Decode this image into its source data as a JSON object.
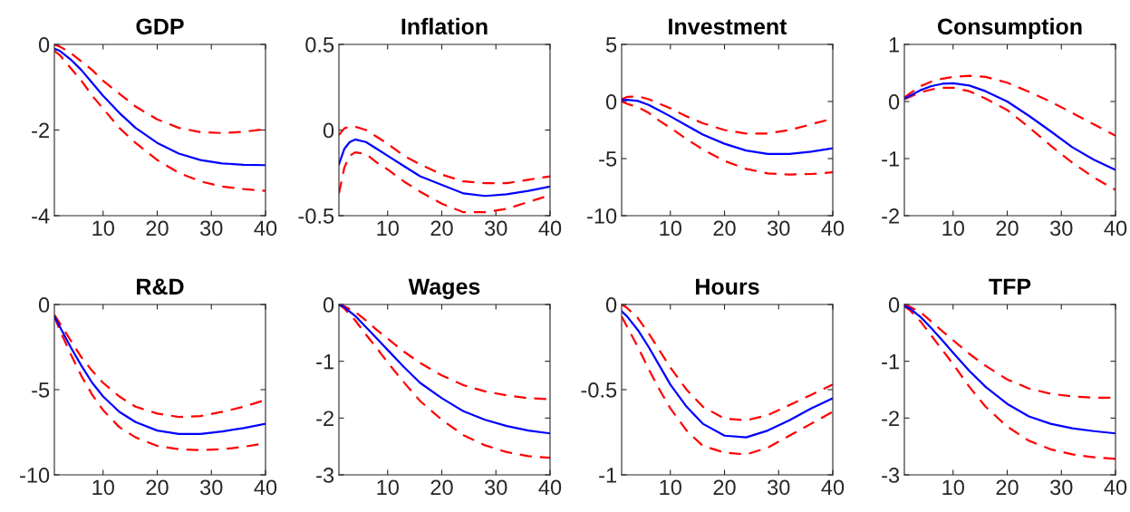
{
  "chart_data": [
    {
      "type": "line",
      "title": "GDP",
      "x": [
        1,
        2,
        4,
        6,
        8,
        10,
        13,
        16,
        20,
        24,
        28,
        32,
        36,
        40
      ],
      "xlim": [
        1,
        40
      ],
      "xticks": [
        10,
        20,
        30,
        40
      ],
      "ylim": [
        -4,
        0
      ],
      "yticks": [
        -4,
        -2,
        0
      ],
      "grid": false,
      "marker": "none",
      "series": [
        {
          "color": "#ff0000",
          "line_style": "dashed",
          "values": [
            0,
            -0.05,
            -0.2,
            -0.4,
            -0.6,
            -0.85,
            -1.15,
            -1.45,
            -1.75,
            -1.95,
            -2.05,
            -2.07,
            -2.04,
            -1.98
          ]
        },
        {
          "color": "#ff0000",
          "line_style": "dashed",
          "values": [
            -0.15,
            -0.25,
            -0.55,
            -0.85,
            -1.2,
            -1.5,
            -1.95,
            -2.3,
            -2.7,
            -3.0,
            -3.2,
            -3.32,
            -3.38,
            -3.42
          ]
        },
        {
          "color": "#0000ff",
          "line_style": "solid",
          "values": [
            -0.1,
            -0.15,
            -0.35,
            -0.6,
            -0.9,
            -1.2,
            -1.6,
            -1.95,
            -2.3,
            -2.55,
            -2.7,
            -2.78,
            -2.81,
            -2.82
          ]
        }
      ]
    },
    {
      "type": "line",
      "title": "Inflation",
      "x": [
        1,
        2,
        3,
        4,
        6,
        8,
        10,
        13,
        16,
        20,
        24,
        28,
        32,
        36,
        40
      ],
      "xlim": [
        1,
        40
      ],
      "xticks": [
        10,
        20,
        30,
        40
      ],
      "ylim": [
        -0.5,
        0.5
      ],
      "yticks": [
        -0.5,
        0,
        0.5
      ],
      "grid": false,
      "marker": "none",
      "series": [
        {
          "color": "#ff0000",
          "line_style": "dashed",
          "values": [
            -0.03,
            0.01,
            0.02,
            0.02,
            0.0,
            -0.04,
            -0.08,
            -0.15,
            -0.2,
            -0.26,
            -0.3,
            -0.31,
            -0.31,
            -0.29,
            -0.27
          ]
        },
        {
          "color": "#ff0000",
          "line_style": "dashed",
          "values": [
            -0.37,
            -0.22,
            -0.15,
            -0.13,
            -0.14,
            -0.19,
            -0.23,
            -0.3,
            -0.36,
            -0.43,
            -0.48,
            -0.48,
            -0.46,
            -0.42,
            -0.38
          ]
        },
        {
          "color": "#0000ff",
          "line_style": "solid",
          "values": [
            -0.2,
            -0.11,
            -0.07,
            -0.055,
            -0.07,
            -0.11,
            -0.15,
            -0.21,
            -0.27,
            -0.32,
            -0.37,
            -0.385,
            -0.375,
            -0.355,
            -0.33
          ]
        }
      ]
    },
    {
      "type": "line",
      "title": "Investment",
      "x": [
        1,
        2,
        4,
        6,
        8,
        10,
        13,
        16,
        20,
        24,
        28,
        32,
        36,
        40
      ],
      "xlim": [
        1,
        40
      ],
      "xticks": [
        10,
        20,
        30,
        40
      ],
      "ylim": [
        -10,
        5
      ],
      "yticks": [
        -10,
        -5,
        0,
        5
      ],
      "grid": false,
      "marker": "none",
      "series": [
        {
          "color": "#ff0000",
          "line_style": "dashed",
          "values": [
            0.2,
            0.4,
            0.45,
            0.2,
            -0.2,
            -0.6,
            -1.3,
            -1.9,
            -2.5,
            -2.8,
            -2.8,
            -2.5,
            -2.0,
            -1.5
          ]
        },
        {
          "color": "#ff0000",
          "line_style": "dashed",
          "values": [
            0,
            -0.2,
            -0.5,
            -1.0,
            -1.7,
            -2.3,
            -3.3,
            -4.2,
            -5.2,
            -5.9,
            -6.3,
            -6.4,
            -6.35,
            -6.2
          ]
        },
        {
          "color": "#0000ff",
          "line_style": "solid",
          "values": [
            0.1,
            0.15,
            0.05,
            -0.3,
            -0.8,
            -1.3,
            -2.1,
            -2.9,
            -3.7,
            -4.3,
            -4.6,
            -4.6,
            -4.4,
            -4.1
          ]
        }
      ]
    },
    {
      "type": "line",
      "title": "Consumption",
      "x": [
        1,
        2,
        4,
        6,
        8,
        10,
        13,
        16,
        20,
        24,
        28,
        32,
        36,
        40
      ],
      "xlim": [
        1,
        40
      ],
      "xticks": [
        10,
        20,
        30,
        40
      ],
      "ylim": [
        -2,
        1
      ],
      "yticks": [
        -2,
        -1,
        0,
        1
      ],
      "grid": false,
      "marker": "none",
      "series": [
        {
          "color": "#ff0000",
          "line_style": "dashed",
          "values": [
            0.07,
            0.14,
            0.27,
            0.35,
            0.4,
            0.43,
            0.45,
            0.43,
            0.33,
            0.17,
            0.0,
            -0.2,
            -0.4,
            -0.6
          ]
        },
        {
          "color": "#ff0000",
          "line_style": "dashed",
          "values": [
            0.04,
            0.08,
            0.16,
            0.21,
            0.24,
            0.24,
            0.18,
            0.05,
            -0.15,
            -0.45,
            -0.77,
            -1.07,
            -1.33,
            -1.55
          ]
        },
        {
          "color": "#0000ff",
          "line_style": "solid",
          "values": [
            0.05,
            0.1,
            0.2,
            0.27,
            0.31,
            0.32,
            0.28,
            0.18,
            0.0,
            -0.25,
            -0.52,
            -0.8,
            -1.02,
            -1.2
          ]
        }
      ]
    },
    {
      "type": "line",
      "title": "R&D",
      "x": [
        1,
        2,
        4,
        6,
        8,
        10,
        13,
        16,
        20,
        24,
        28,
        32,
        36,
        40
      ],
      "xlim": [
        1,
        40
      ],
      "xticks": [
        10,
        20,
        30,
        40
      ],
      "ylim": [
        -10,
        0
      ],
      "yticks": [
        -10,
        -5,
        0
      ],
      "grid": false,
      "marker": "none",
      "series": [
        {
          "color": "#ff0000",
          "line_style": "dashed",
          "values": [
            -0.6,
            -1.1,
            -2.1,
            -3.1,
            -3.9,
            -4.6,
            -5.4,
            -6.0,
            -6.4,
            -6.6,
            -6.55,
            -6.3,
            -6.0,
            -5.6
          ]
        },
        {
          "color": "#ff0000",
          "line_style": "dashed",
          "values": [
            -0.7,
            -1.5,
            -2.9,
            -4.2,
            -5.3,
            -6.2,
            -7.2,
            -7.8,
            -8.3,
            -8.5,
            -8.55,
            -8.5,
            -8.35,
            -8.15
          ]
        },
        {
          "color": "#0000ff",
          "line_style": "solid",
          "values": [
            -0.7,
            -1.3,
            -2.5,
            -3.6,
            -4.6,
            -5.4,
            -6.3,
            -6.9,
            -7.4,
            -7.6,
            -7.6,
            -7.45,
            -7.25,
            -7.0
          ]
        }
      ]
    },
    {
      "type": "line",
      "title": "Wages",
      "x": [
        1,
        2,
        4,
        6,
        8,
        10,
        13,
        16,
        20,
        24,
        28,
        32,
        36,
        40
      ],
      "xlim": [
        1,
        40
      ],
      "xticks": [
        10,
        20,
        30,
        40
      ],
      "ylim": [
        -3,
        0
      ],
      "yticks": [
        -3,
        -2,
        -1,
        0
      ],
      "grid": false,
      "marker": "none",
      "series": [
        {
          "color": "#ff0000",
          "line_style": "dashed",
          "values": [
            0,
            -0.03,
            -0.13,
            -0.28,
            -0.45,
            -0.6,
            -0.83,
            -1.03,
            -1.25,
            -1.42,
            -1.53,
            -1.6,
            -1.65,
            -1.67
          ]
        },
        {
          "color": "#ff0000",
          "line_style": "dashed",
          "values": [
            0,
            -0.07,
            -0.28,
            -0.53,
            -0.77,
            -1.02,
            -1.37,
            -1.7,
            -2.03,
            -2.3,
            -2.48,
            -2.6,
            -2.67,
            -2.7
          ]
        },
        {
          "color": "#0000ff",
          "line_style": "solid",
          "values": [
            0,
            -0.05,
            -0.2,
            -0.4,
            -0.6,
            -0.8,
            -1.1,
            -1.38,
            -1.65,
            -1.88,
            -2.03,
            -2.14,
            -2.22,
            -2.27
          ]
        }
      ]
    },
    {
      "type": "line",
      "title": "Hours",
      "x": [
        1,
        2,
        4,
        6,
        8,
        10,
        13,
        16,
        20,
        24,
        28,
        32,
        36,
        40
      ],
      "xlim": [
        1,
        40
      ],
      "xticks": [
        10,
        20,
        30,
        40
      ],
      "ylim": [
        -1,
        0
      ],
      "yticks": [
        -1,
        -0.5,
        0
      ],
      "grid": false,
      "marker": "none",
      "series": [
        {
          "color": "#ff0000",
          "line_style": "dashed",
          "values": [
            0,
            -0.02,
            -0.08,
            -0.17,
            -0.27,
            -0.37,
            -0.5,
            -0.6,
            -0.67,
            -0.68,
            -0.65,
            -0.59,
            -0.53,
            -0.47
          ]
        },
        {
          "color": "#ff0000",
          "line_style": "dashed",
          "values": [
            -0.07,
            -0.13,
            -0.25,
            -0.38,
            -0.5,
            -0.61,
            -0.74,
            -0.83,
            -0.87,
            -0.88,
            -0.84,
            -0.77,
            -0.7,
            -0.63
          ]
        },
        {
          "color": "#0000ff",
          "line_style": "solid",
          "values": [
            -0.04,
            -0.07,
            -0.15,
            -0.25,
            -0.36,
            -0.47,
            -0.6,
            -0.7,
            -0.77,
            -0.78,
            -0.74,
            -0.68,
            -0.61,
            -0.55
          ]
        }
      ]
    },
    {
      "type": "line",
      "title": "TFP",
      "x": [
        1,
        2,
        4,
        6,
        8,
        10,
        13,
        16,
        20,
        24,
        28,
        32,
        36,
        40
      ],
      "xlim": [
        1,
        40
      ],
      "xticks": [
        10,
        20,
        30,
        40
      ],
      "ylim": [
        -3,
        0
      ],
      "yticks": [
        -3,
        -2,
        -1,
        0
      ],
      "grid": false,
      "marker": "none",
      "series": [
        {
          "color": "#ff0000",
          "line_style": "dashed",
          "values": [
            0,
            -0.04,
            -0.14,
            -0.3,
            -0.47,
            -0.63,
            -0.87,
            -1.08,
            -1.32,
            -1.48,
            -1.57,
            -1.62,
            -1.64,
            -1.64
          ]
        },
        {
          "color": "#ff0000",
          "line_style": "dashed",
          "values": [
            -0.03,
            -0.1,
            -0.3,
            -0.55,
            -0.8,
            -1.05,
            -1.45,
            -1.8,
            -2.15,
            -2.4,
            -2.55,
            -2.64,
            -2.69,
            -2.72
          ]
        },
        {
          "color": "#0000ff",
          "line_style": "solid",
          "values": [
            -0.03,
            -0.07,
            -0.22,
            -0.42,
            -0.63,
            -0.85,
            -1.17,
            -1.45,
            -1.75,
            -1.97,
            -2.1,
            -2.18,
            -2.23,
            -2.27
          ]
        }
      ]
    }
  ]
}
